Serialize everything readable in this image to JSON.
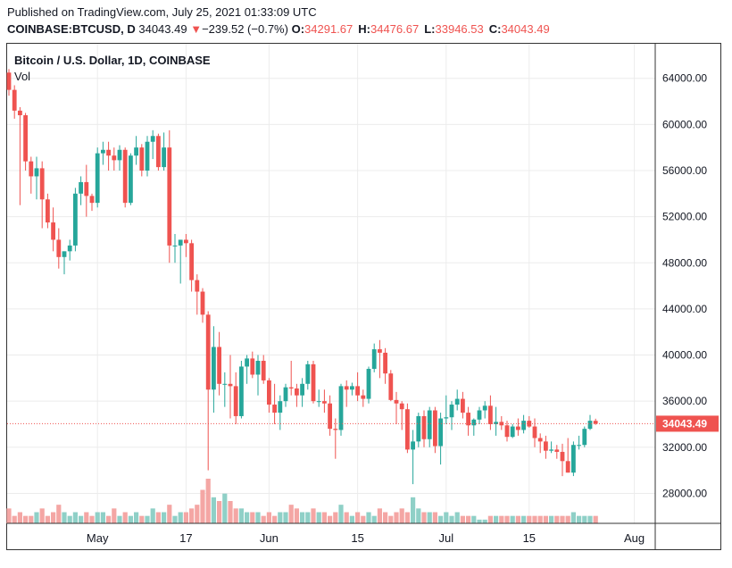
{
  "header": {
    "published": "Published on TradingView.com, July 25, 2021 01:33:09 UTC",
    "symbol": "COINBASE:BTCUSD, D",
    "last": "34043.49",
    "change_arrow": "▼",
    "change": "−239.52 (−0.7%)",
    "o_label": "O:",
    "o_value": "34291.67",
    "h_label": "H:",
    "h_value": "34476.67",
    "l_label": "L:",
    "l_value": "33946.53",
    "c_label": "C:",
    "c_value": "34043.49"
  },
  "chart_title": "Bitcoin / U.S. Dollar, 1D, COINBASE",
  "volume_label": "Vol",
  "colors": {
    "up": "#26a69a",
    "down": "#ef5350",
    "up_vol": "#8fd0c7",
    "down_vol": "#f4a6a4",
    "grid": "#ececec",
    "text": "#131722"
  },
  "chart_data": {
    "type": "candlestick",
    "title": "Bitcoin / U.S. Dollar, 1D, COINBASE",
    "ylim": [
      25400,
      67000
    ],
    "y_ticks": [
      "64000.00",
      "60000.00",
      "56000.00",
      "52000.00",
      "48000.00",
      "44000.00",
      "40000.00",
      "36000.00",
      "32000.00",
      "28000.00"
    ],
    "x_ticks": [
      "May",
      "17",
      "Jun",
      "15",
      "Jul",
      "15",
      "Aug"
    ],
    "last_price_label": "34043.49",
    "last_price": 34043.49,
    "grid": true,
    "series": [
      {
        "open": 64500,
        "high": 64800,
        "low": 62500,
        "close": 63000
      },
      {
        "open": 63000,
        "high": 63400,
        "low": 60500,
        "close": 61200
      },
      {
        "open": 61200,
        "high": 61500,
        "low": 53000,
        "close": 60800
      },
      {
        "open": 60800,
        "high": 61000,
        "low": 56000,
        "close": 56800
      },
      {
        "open": 56800,
        "high": 57200,
        "low": 54000,
        "close": 55500
      },
      {
        "open": 55500,
        "high": 57200,
        "low": 53500,
        "close": 56200
      },
      {
        "open": 56200,
        "high": 56800,
        "low": 51000,
        "close": 53500
      },
      {
        "open": 53500,
        "high": 54000,
        "low": 51000,
        "close": 51500
      },
      {
        "open": 51500,
        "high": 52800,
        "low": 49000,
        "close": 50000
      },
      {
        "open": 50000,
        "high": 51000,
        "low": 47500,
        "close": 48500
      },
      {
        "open": 48500,
        "high": 49000,
        "low": 47000,
        "close": 49000
      },
      {
        "open": 49000,
        "high": 50000,
        "low": 48200,
        "close": 49500
      },
      {
        "open": 49500,
        "high": 54500,
        "low": 49000,
        "close": 54000
      },
      {
        "open": 54000,
        "high": 55500,
        "low": 53000,
        "close": 55000
      },
      {
        "open": 55000,
        "high": 56500,
        "low": 52000,
        "close": 53800
      },
      {
        "open": 53800,
        "high": 54000,
        "low": 52500,
        "close": 53200
      },
      {
        "open": 53200,
        "high": 58000,
        "low": 52800,
        "close": 57500
      },
      {
        "open": 57500,
        "high": 58500,
        "low": 56500,
        "close": 57800
      },
      {
        "open": 57800,
        "high": 58500,
        "low": 56000,
        "close": 57300
      },
      {
        "open": 57300,
        "high": 58000,
        "low": 56000,
        "close": 56900
      },
      {
        "open": 56900,
        "high": 58200,
        "low": 56000,
        "close": 57800
      },
      {
        "open": 57800,
        "high": 58000,
        "low": 52800,
        "close": 53200
      },
      {
        "open": 53200,
        "high": 57500,
        "low": 53000,
        "close": 57300
      },
      {
        "open": 57300,
        "high": 59000,
        "low": 56500,
        "close": 58000
      },
      {
        "open": 58000,
        "high": 58300,
        "low": 55500,
        "close": 56000
      },
      {
        "open": 56000,
        "high": 59000,
        "low": 55500,
        "close": 58500
      },
      {
        "open": 58500,
        "high": 59500,
        "low": 57000,
        "close": 59000
      },
      {
        "open": 59000,
        "high": 59200,
        "low": 56000,
        "close": 56300
      },
      {
        "open": 56300,
        "high": 59300,
        "low": 56000,
        "close": 58000
      },
      {
        "open": 58000,
        "high": 59500,
        "low": 48000,
        "close": 49500
      },
      {
        "open": 49500,
        "high": 50500,
        "low": 48000,
        "close": 49500
      },
      {
        "open": 49500,
        "high": 50000,
        "low": 46200,
        "close": 50000
      },
      {
        "open": 50000,
        "high": 50500,
        "low": 48500,
        "close": 49700
      },
      {
        "open": 49700,
        "high": 50000,
        "low": 45500,
        "close": 46500
      },
      {
        "open": 46500,
        "high": 47000,
        "low": 43500,
        "close": 45500
      },
      {
        "open": 45500,
        "high": 45800,
        "low": 42800,
        "close": 43500
      },
      {
        "open": 43500,
        "high": 43800,
        "low": 30000,
        "close": 37000
      },
      {
        "open": 37000,
        "high": 42500,
        "low": 35000,
        "close": 40700
      },
      {
        "open": 40700,
        "high": 42000,
        "low": 36500,
        "close": 37500
      },
      {
        "open": 37500,
        "high": 38500,
        "low": 35500,
        "close": 37500
      },
      {
        "open": 37500,
        "high": 40000,
        "low": 34500,
        "close": 37300
      },
      {
        "open": 37300,
        "high": 38500,
        "low": 34000,
        "close": 34700
      },
      {
        "open": 34700,
        "high": 39500,
        "low": 34500,
        "close": 39000
      },
      {
        "open": 39000,
        "high": 40000,
        "low": 37500,
        "close": 39700
      },
      {
        "open": 39700,
        "high": 40300,
        "low": 38000,
        "close": 38300
      },
      {
        "open": 38300,
        "high": 40000,
        "low": 36500,
        "close": 39500
      },
      {
        "open": 39500,
        "high": 40000,
        "low": 37500,
        "close": 37800
      },
      {
        "open": 37800,
        "high": 38000,
        "low": 35000,
        "close": 35700
      },
      {
        "open": 35700,
        "high": 37500,
        "low": 34000,
        "close": 35000
      },
      {
        "open": 35000,
        "high": 36500,
        "low": 33500,
        "close": 36000
      },
      {
        "open": 36000,
        "high": 37500,
        "low": 35500,
        "close": 37200
      },
      {
        "open": 37200,
        "high": 39500,
        "low": 36500,
        "close": 37100
      },
      {
        "open": 37100,
        "high": 37500,
        "low": 35500,
        "close": 36500
      },
      {
        "open": 36500,
        "high": 38000,
        "low": 35500,
        "close": 37500
      },
      {
        "open": 37500,
        "high": 39500,
        "low": 37000,
        "close": 39200
      },
      {
        "open": 39200,
        "high": 39500,
        "low": 35800,
        "close": 36000
      },
      {
        "open": 36000,
        "high": 37000,
        "low": 35500,
        "close": 36000
      },
      {
        "open": 36000,
        "high": 37000,
        "low": 35000,
        "close": 35800
      },
      {
        "open": 35800,
        "high": 36500,
        "low": 33000,
        "close": 33600
      },
      {
        "open": 33600,
        "high": 34500,
        "low": 31000,
        "close": 33500
      },
      {
        "open": 33500,
        "high": 37500,
        "low": 33000,
        "close": 37300
      },
      {
        "open": 37300,
        "high": 37800,
        "low": 35500,
        "close": 37000
      },
      {
        "open": 37000,
        "high": 37600,
        "low": 36500,
        "close": 37300
      },
      {
        "open": 37300,
        "high": 38500,
        "low": 36000,
        "close": 36500
      },
      {
        "open": 36500,
        "high": 37000,
        "low": 35500,
        "close": 36200
      },
      {
        "open": 36200,
        "high": 39000,
        "low": 35800,
        "close": 38800
      },
      {
        "open": 38800,
        "high": 41000,
        "low": 38500,
        "close": 40500
      },
      {
        "open": 40500,
        "high": 41300,
        "low": 38000,
        "close": 40200
      },
      {
        "open": 40200,
        "high": 40600,
        "low": 37500,
        "close": 38400
      },
      {
        "open": 38400,
        "high": 38700,
        "low": 36000,
        "close": 36100
      },
      {
        "open": 36100,
        "high": 36800,
        "low": 34000,
        "close": 35800
      },
      {
        "open": 35800,
        "high": 36000,
        "low": 33500,
        "close": 35300
      },
      {
        "open": 35300,
        "high": 35800,
        "low": 31500,
        "close": 31800
      },
      {
        "open": 31800,
        "high": 33500,
        "low": 28800,
        "close": 32500
      },
      {
        "open": 32500,
        "high": 35000,
        "low": 32000,
        "close": 34700
      },
      {
        "open": 34700,
        "high": 35200,
        "low": 32000,
        "close": 32700
      },
      {
        "open": 32700,
        "high": 35500,
        "low": 32000,
        "close": 35200
      },
      {
        "open": 35200,
        "high": 35500,
        "low": 31500,
        "close": 32100
      },
      {
        "open": 32100,
        "high": 35000,
        "low": 30500,
        "close": 34500
      },
      {
        "open": 34500,
        "high": 36500,
        "low": 34000,
        "close": 34600
      },
      {
        "open": 34600,
        "high": 36000,
        "low": 33500,
        "close": 35700
      },
      {
        "open": 35700,
        "high": 37000,
        "low": 35200,
        "close": 36200
      },
      {
        "open": 36200,
        "high": 36800,
        "low": 34500,
        "close": 35000
      },
      {
        "open": 35000,
        "high": 35500,
        "low": 33000,
        "close": 33900
      },
      {
        "open": 33900,
        "high": 34500,
        "low": 33000,
        "close": 34400
      },
      {
        "open": 34400,
        "high": 35500,
        "low": 34000,
        "close": 35200
      },
      {
        "open": 35200,
        "high": 36000,
        "low": 34500,
        "close": 35600
      },
      {
        "open": 35600,
        "high": 36500,
        "low": 33500,
        "close": 34000
      },
      {
        "open": 34000,
        "high": 35500,
        "low": 33000,
        "close": 34200
      },
      {
        "open": 34200,
        "high": 34700,
        "low": 33500,
        "close": 33900
      },
      {
        "open": 33900,
        "high": 34300,
        "low": 32500,
        "close": 32900
      },
      {
        "open": 32900,
        "high": 34000,
        "low": 32800,
        "close": 33800
      },
      {
        "open": 33800,
        "high": 34500,
        "low": 33000,
        "close": 33500
      },
      {
        "open": 33500,
        "high": 34800,
        "low": 33200,
        "close": 34300
      },
      {
        "open": 34300,
        "high": 34700,
        "low": 33700,
        "close": 33800
      },
      {
        "open": 33800,
        "high": 34500,
        "low": 32000,
        "close": 32800
      },
      {
        "open": 32800,
        "high": 33200,
        "low": 31500,
        "close": 32500
      },
      {
        "open": 32500,
        "high": 33000,
        "low": 31000,
        "close": 31700
      },
      {
        "open": 31700,
        "high": 32500,
        "low": 31500,
        "close": 31800
      },
      {
        "open": 31800,
        "high": 32200,
        "low": 31000,
        "close": 31600
      },
      {
        "open": 31600,
        "high": 32300,
        "low": 29500,
        "close": 30800
      },
      {
        "open": 30800,
        "high": 32800,
        "low": 29800,
        "close": 29800
      },
      {
        "open": 29800,
        "high": 32500,
        "low": 29500,
        "close": 32200
      },
      {
        "open": 32200,
        "high": 33000,
        "low": 31800,
        "close": 32200
      },
      {
        "open": 32200,
        "high": 33800,
        "low": 32000,
        "close": 33600
      },
      {
        "open": 33600,
        "high": 34800,
        "low": 33500,
        "close": 34300
      },
      {
        "open": 34291.67,
        "high": 34476.67,
        "low": 33946.53,
        "close": 34043.49
      }
    ],
    "volume": [
      4,
      2,
      3,
      2,
      2,
      3,
      4,
      2,
      3,
      5,
      3,
      2,
      3,
      2,
      3,
      2,
      3,
      3,
      2,
      4,
      2,
      3,
      2,
      3,
      2,
      2,
      4,
      3,
      3,
      5,
      2,
      3,
      3,
      4,
      5,
      9,
      12,
      7,
      6,
      8,
      6,
      4,
      4,
      3,
      3,
      3,
      2,
      3,
      2,
      3,
      3,
      5,
      4,
      3,
      3,
      4,
      3,
      3,
      2,
      3,
      5,
      3,
      2,
      3,
      2,
      3,
      2,
      4,
      3,
      2,
      3,
      4,
      3,
      7,
      4,
      3,
      3,
      3,
      2,
      3,
      2,
      3,
      2,
      2,
      2,
      1,
      1,
      2,
      2,
      2,
      2,
      2,
      2,
      2,
      2,
      2,
      2,
      2,
      2,
      2,
      2,
      2,
      3,
      2,
      2,
      2,
      2
    ],
    "volume_max": 12
  }
}
